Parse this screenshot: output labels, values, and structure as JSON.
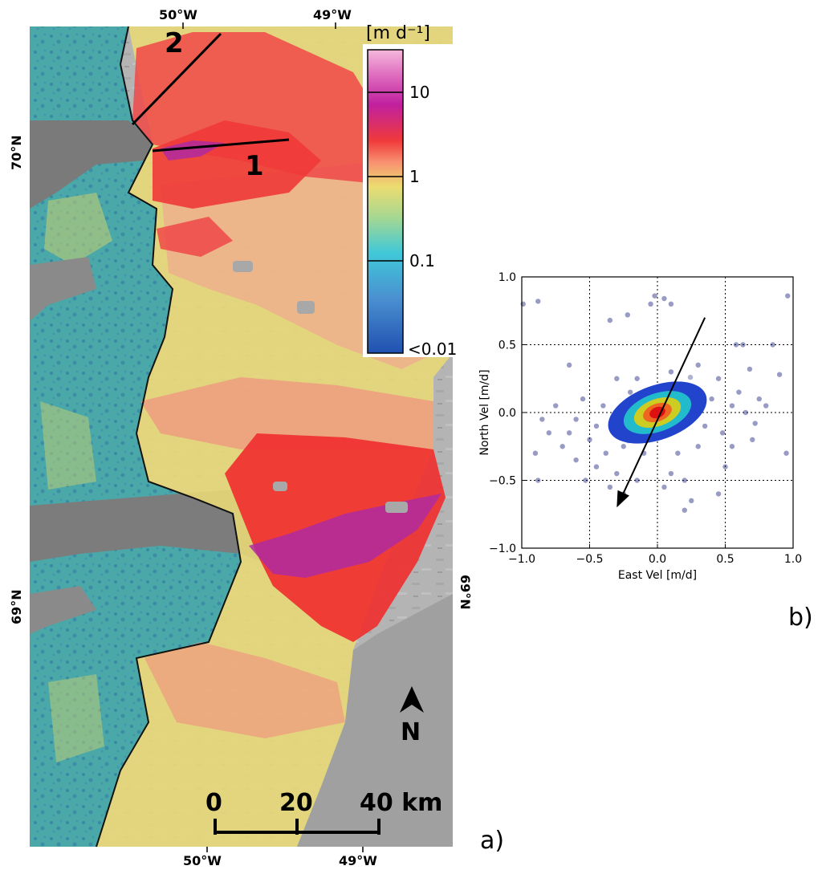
{
  "panel_a": {
    "label": "a)",
    "top_longitudes": [
      "50°W",
      "49°W"
    ],
    "bottom_longitudes": [
      "50°W",
      "49°W"
    ],
    "left_latitudes": [
      "70°N",
      "69°N"
    ],
    "right_latitude": "69°N",
    "profile_labels": [
      "1",
      "2"
    ],
    "north_label": "N",
    "scalebar": {
      "labels": [
        "0",
        "20",
        "40 km"
      ],
      "values_km": [
        0,
        20,
        40
      ]
    },
    "colorbar": {
      "unit_label": "[m d⁻¹]",
      "tick_labels": [
        "10",
        "1",
        "0.1",
        "<0.01"
      ],
      "scale": "log",
      "colors": [
        "#2050b0",
        "#40a8d8",
        "#60d0c0",
        "#e0e060",
        "#f8a060",
        "#f03030",
        "#b020a0",
        "#f0a0d0"
      ]
    }
  },
  "panel_b": {
    "label": "b)",
    "chart_data": {
      "type": "scatter",
      "xlabel": "East Vel [m/d]",
      "ylabel": "North Vel [m/d]",
      "xlim": [
        -1.0,
        1.0
      ],
      "ylim": [
        -1.0,
        1.0
      ],
      "xticks": [
        "−1.0",
        "−0.5",
        "0.0",
        "0.5",
        "1.0"
      ],
      "yticks": [
        "1.0",
        "0.5",
        "0.0",
        "−0.5",
        "−1.0"
      ],
      "grid": true,
      "point_color": "#1a237e",
      "density_colors": [
        "#2244cc",
        "#22bbcc",
        "#cccc22",
        "#ee6622",
        "#dd1111"
      ],
      "points": [
        [
          -0.99,
          0.8
        ],
        [
          -0.88,
          0.82
        ],
        [
          0.96,
          0.86
        ],
        [
          -0.35,
          0.68
        ],
        [
          -0.22,
          0.72
        ],
        [
          -0.02,
          0.86
        ],
        [
          0.05,
          0.84
        ],
        [
          0.1,
          0.8
        ],
        [
          -0.05,
          0.8
        ],
        [
          0.85,
          0.5
        ],
        [
          0.58,
          0.5
        ],
        [
          0.63,
          0.5
        ],
        [
          0.9,
          0.28
        ],
        [
          0.68,
          0.32
        ],
        [
          -0.65,
          0.35
        ],
        [
          -0.55,
          0.1
        ],
        [
          -0.3,
          0.25
        ],
        [
          0.3,
          0.35
        ],
        [
          0.45,
          0.25
        ],
        [
          0.6,
          0.15
        ],
        [
          0.75,
          0.1
        ],
        [
          0.8,
          0.05
        ],
        [
          -0.85,
          -0.05
        ],
        [
          -0.8,
          -0.15
        ],
        [
          -0.7,
          -0.25
        ],
        [
          -0.9,
          -0.3
        ],
        [
          -0.6,
          -0.35
        ],
        [
          -0.5,
          -0.2
        ],
        [
          -0.45,
          -0.4
        ],
        [
          -0.3,
          -0.45
        ],
        [
          -0.35,
          -0.55
        ],
        [
          -0.25,
          -0.6
        ],
        [
          -0.15,
          -0.5
        ],
        [
          0.05,
          -0.55
        ],
        [
          0.1,
          -0.45
        ],
        [
          0.2,
          -0.5
        ],
        [
          0.45,
          -0.6
        ],
        [
          0.5,
          -0.4
        ],
        [
          0.55,
          -0.25
        ],
        [
          0.7,
          -0.2
        ],
        [
          0.95,
          -0.3
        ],
        [
          0.25,
          -0.65
        ],
        [
          0.2,
          -0.72
        ],
        [
          -0.53,
          -0.5
        ],
        [
          -0.88,
          -0.5
        ],
        [
          -0.4,
          0.05
        ],
        [
          -0.45,
          -0.1
        ],
        [
          0.35,
          -0.1
        ],
        [
          0.4,
          0.1
        ],
        [
          0.25,
          0.15
        ],
        [
          -0.2,
          0.15
        ],
        [
          -0.1,
          -0.3
        ],
        [
          0.15,
          -0.3
        ],
        [
          -0.25,
          -0.25
        ],
        [
          0.3,
          -0.25
        ],
        [
          -0.6,
          -0.05
        ],
        [
          0.65,
          0.0
        ],
        [
          0.55,
          0.05
        ],
        [
          -0.15,
          0.25
        ],
        [
          0.1,
          0.3
        ],
        [
          -0.75,
          0.05
        ],
        [
          -0.65,
          -0.15
        ],
        [
          0.72,
          -0.08
        ],
        [
          0.48,
          -0.15
        ],
        [
          -0.38,
          -0.3
        ]
      ],
      "arrow": {
        "from": [
          0.35,
          0.7
        ],
        "to": [
          -0.3,
          -0.7
        ]
      }
    }
  }
}
